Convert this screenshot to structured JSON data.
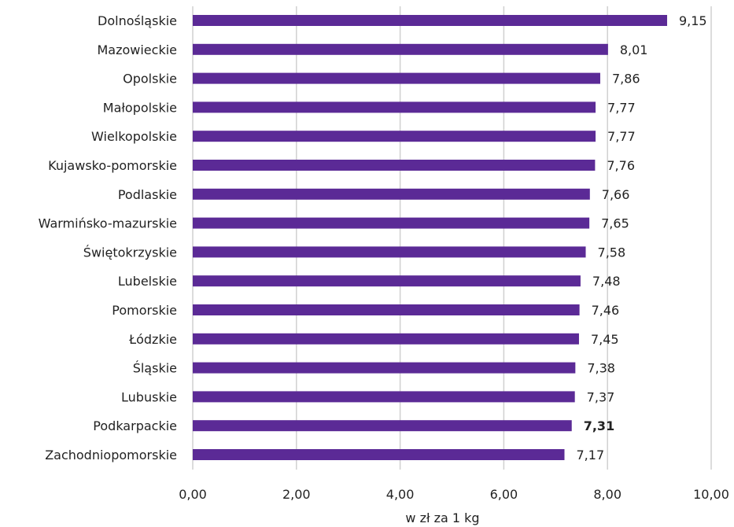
{
  "chart_data": {
    "type": "bar",
    "orientation": "horizontal",
    "title": "",
    "xlabel": "w zł za 1 kg",
    "ylabel": "",
    "xlim": [
      0,
      10
    ],
    "x_ticks": [
      "0,00",
      "2,00",
      "4,00",
      "6,00",
      "8,00",
      "10,00"
    ],
    "grid": true,
    "bar_color": "#5b2a96",
    "categories": [
      "Dolnośląskie",
      "Mazowieckie",
      "Opolskie",
      "Małopolskie",
      "Wielkopolskie",
      "Kujawsko-pomorskie",
      "Podlaskie",
      "Warmińsko-mazurskie",
      "Świętokrzyskie",
      "Lubelskie",
      "Pomorskie",
      "Łódzkie",
      "Śląskie",
      "Lubuskie",
      "Podkarpackie",
      "Zachodniopomorskie"
    ],
    "values": [
      9.15,
      8.01,
      7.86,
      7.77,
      7.77,
      7.76,
      7.66,
      7.65,
      7.58,
      7.48,
      7.46,
      7.45,
      7.38,
      7.37,
      7.31,
      7.17
    ],
    "value_labels": [
      "9,15",
      "8,01",
      "7,86",
      "7,77",
      "7,77",
      "7,76",
      "7,66",
      "7,65",
      "7,58",
      "7,48",
      "7,46",
      "7,45",
      "7,38",
      "7,37",
      "7,31",
      "7,17"
    ],
    "highlighted_category": "Podkarpackie"
  }
}
